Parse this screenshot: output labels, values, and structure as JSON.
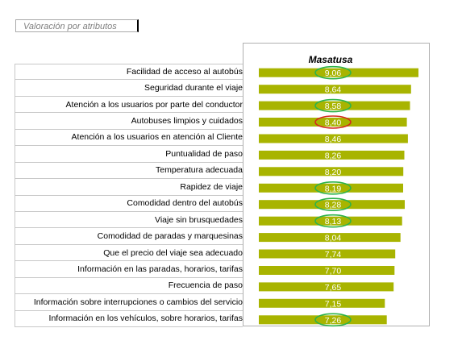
{
  "header": {
    "title_box": "Valoración por atributos"
  },
  "colors": {
    "bar": "#a8b400",
    "value_text": "#ffffff",
    "highlight_green": "#2db34a",
    "highlight_red": "#d42a1e"
  },
  "chart_data": {
    "type": "bar",
    "orientation": "horizontal",
    "title": "Masatusa",
    "categories": [
      "Facilidad de acceso al autobús",
      "Seguridad durante el viaje",
      "Atención a los usuarios por parte del conductor",
      "Autobuses limpios y cuidados",
      "Atención a los usuarios en atención al Cliente",
      "Puntualidad de paso",
      "Temperatura adecuada",
      "Rapidez de viaje",
      "Comodidad dentro del autobús",
      "Viaje sin brusquedades",
      "Comodidad de paradas y marquesinas",
      "Que el precio del viaje sea adecuado",
      "Información en las paradas, horarios, tarifas",
      "Frecuencia de paso",
      "Información sobre interrupciones o cambios del servicio",
      "Información en los vehículos, sobre horarios, tarifas"
    ],
    "series": [
      {
        "values": [
          9.06,
          8.64,
          8.58,
          8.4,
          8.46,
          8.26,
          8.2,
          8.19,
          8.28,
          8.13,
          8.04,
          7.74,
          7.7,
          7.65,
          7.15,
          7.26
        ]
      }
    ],
    "value_labels": [
      "9,06",
      "8,64",
      "8,58",
      "8,40",
      "8,46",
      "8,26",
      "8,20",
      "8,19",
      "8,28",
      "8,13",
      "8,04",
      "7,74",
      "7,70",
      "7,65",
      "7,15",
      "7,26"
    ],
    "highlighted": {
      "green": [
        0,
        2,
        7,
        8,
        9,
        15
      ],
      "red": [
        3
      ]
    },
    "xlim": [
      0,
      9.5
    ],
    "grid": false,
    "legend": "none"
  }
}
